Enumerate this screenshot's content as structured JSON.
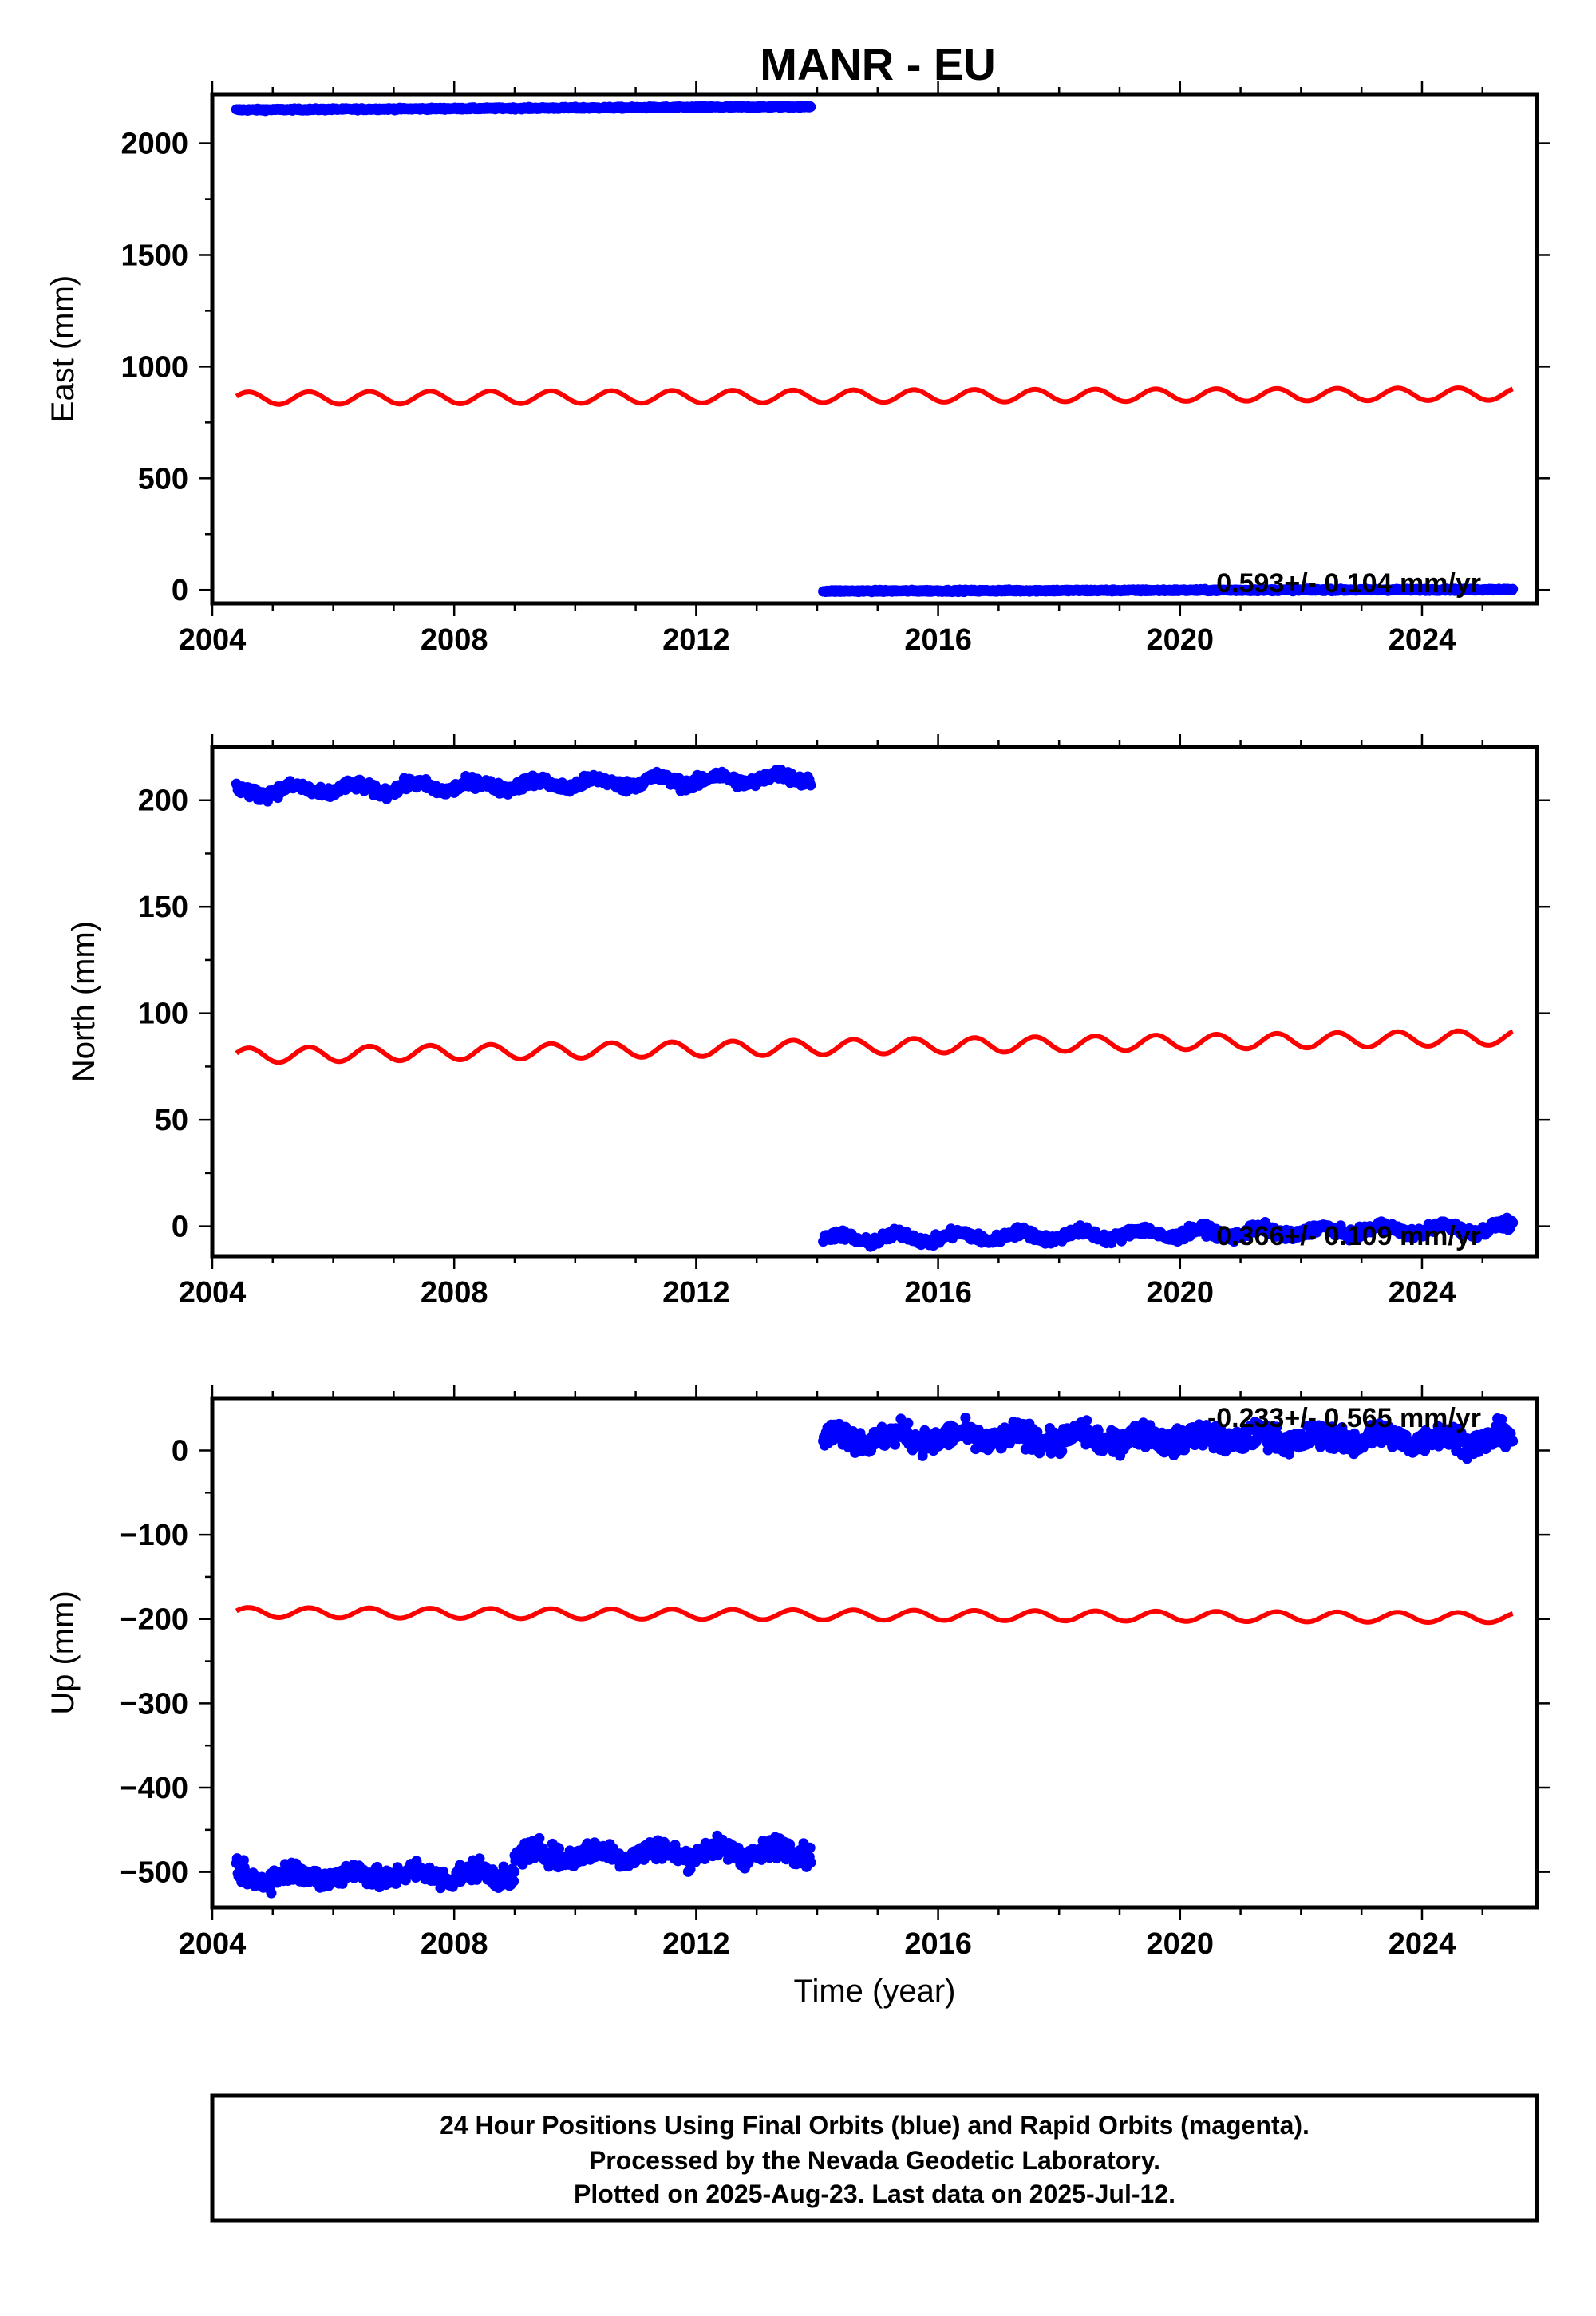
{
  "title": "MANR - EU",
  "footer": {
    "lines": [
      "24 Hour Positions Using Final Orbits (blue) and Rapid Orbits (magenta).",
      "Processed by the Nevada Geodetic Laboratory.",
      "Plotted on 2025-Aug-23. Last data on 2025-Jul-12."
    ]
  },
  "colors": {
    "final": "#0000ff",
    "model": "#ff0000",
    "frame": "#000000"
  },
  "chart_data": [
    {
      "type": "scatter",
      "component": "east",
      "ylabel": "East (mm)",
      "xlabel": "",
      "xlim": [
        2004.0,
        2025.9
      ],
      "ylim": [
        -60,
        2220
      ],
      "xticks": [
        2004,
        2008,
        2012,
        2016,
        2020,
        2024
      ],
      "yticks": [
        0,
        500,
        1000,
        1500,
        2000
      ],
      "rate_label": "0.593+/- 0.104 mm/yr",
      "series": [
        {
          "kind": "data",
          "segments": [
            {
              "x_range": [
                2004.4,
                2013.9
              ],
              "base": 2150,
              "slope": 1.5,
              "noise": 4,
              "band": 0
            },
            {
              "x_range": [
                2014.1,
                2025.5
              ],
              "base": -5,
              "slope": 0.6,
              "noise": 4,
              "band": 0
            }
          ]
        },
        {
          "kind": "model",
          "x_range": [
            2004.4,
            2025.5
          ],
          "base": 858,
          "slope": 0.9,
          "amplitude": 28
        }
      ]
    },
    {
      "type": "scatter",
      "component": "north",
      "ylabel": "North (mm)",
      "xlabel": "",
      "xlim": [
        2004.0,
        2025.9
      ],
      "ylim": [
        -14,
        225
      ],
      "xticks": [
        2004,
        2008,
        2012,
        2016,
        2020,
        2024
      ],
      "yticks": [
        0,
        50,
        100,
        150,
        200
      ],
      "rate_label": "0.366+/- 0.109 mm/yr",
      "series": [
        {
          "kind": "data",
          "segments": [
            {
              "x_range": [
                2004.4,
                2013.9
              ],
              "base": 204,
              "slope": 0.7,
              "noise": 2.5,
              "band": 2
            },
            {
              "x_range": [
                2014.1,
                2025.5
              ],
              "base": -6,
              "slope": 0.45,
              "noise": 2.2,
              "band": 2
            }
          ]
        },
        {
          "kind": "model",
          "x_range": [
            2004.4,
            2025.5
          ],
          "base": 80,
          "slope": 0.4,
          "amplitude": 3.5
        }
      ]
    },
    {
      "type": "scatter",
      "component": "up",
      "ylabel": "Up (mm)",
      "xlabel": "Time (year)",
      "xlim": [
        2004.0,
        2025.9
      ],
      "ylim": [
        -542,
        62
      ],
      "xticks": [
        2004,
        2008,
        2012,
        2016,
        2020,
        2024
      ],
      "yticks": [
        0,
        -100,
        -200,
        -300,
        -400,
        -500
      ],
      "rate_label": "-0.233+/- 0.565 mm/yr",
      "series": [
        {
          "kind": "data",
          "segments": [
            {
              "x_range": [
                2004.4,
                2009.0
              ],
              "base": -505,
              "slope": 0.5,
              "noise": 12,
              "band": 6
            },
            {
              "x_range": [
                2009.0,
                2013.9
              ],
              "base": -480,
              "slope": 1.0,
              "noise": 12,
              "band": 6
            },
            {
              "x_range": [
                2014.1,
                2025.5
              ],
              "base": 15,
              "slope": -0.1,
              "noise": 14,
              "band": 6
            }
          ]
        },
        {
          "kind": "model",
          "x_range": [
            2004.4,
            2025.5
          ],
          "base": -192,
          "slope": -0.3,
          "amplitude": 6
        }
      ]
    }
  ]
}
